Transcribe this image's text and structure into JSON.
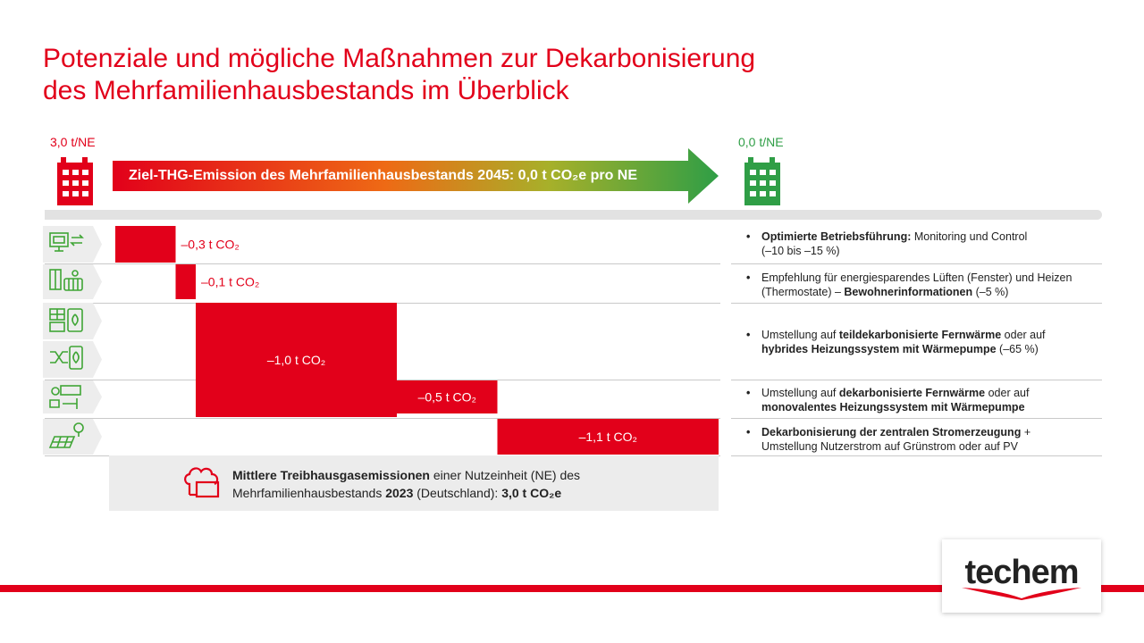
{
  "title": {
    "line1": "Potenziale und mögliche Maßnahmen zur Dekarbonisierung",
    "line2": "des Mehrfamilienhausbestands im Überblick"
  },
  "start_label": "3,0 t/NE",
  "end_label": "0,0 t/NE",
  "arrow_text": "Ziel-THG-Emission des Mehrfamilienhausbestands 2045: 0,0 t CO₂e pro NE",
  "colors": {
    "accent_red": "#e2001a",
    "green": "#2f9e46",
    "orange": "#f08a1c",
    "icon_green": "#3fa535"
  },
  "icons": [
    {
      "name": "monitoring-icon"
    },
    {
      "name": "thermostat-radiator-icon"
    },
    {
      "name": "solar-heating-icon"
    },
    {
      "name": "hybrid-switch-icon"
    },
    {
      "name": "district-heat-pump-icon"
    },
    {
      "name": "solar-power-icon"
    }
  ],
  "chart_data": {
    "type": "waterfall",
    "start_value": 3.0,
    "end_value": 0.0,
    "unit": "t CO₂",
    "steps": [
      {
        "value": -0.3,
        "label": "–0,3 t CO₂"
      },
      {
        "value": -0.1,
        "label": "–0,1 t CO₂"
      },
      {
        "value": -1.0,
        "label": "–1,0 t CO₂"
      },
      {
        "value": -0.5,
        "label": "–0,5 t CO₂"
      },
      {
        "value": -1.1,
        "label": "–1,1 t CO₂"
      }
    ]
  },
  "measures": [
    {
      "segments": [
        {
          "t": "Optimierte Betriebsführung:",
          "b": true
        },
        {
          "t": " Monitoring und Control",
          "b": false
        },
        {
          "br": true
        },
        {
          "t": "(–10 bis –15 %)",
          "b": false
        }
      ]
    },
    {
      "segments": [
        {
          "t": "Empfehlung für energiesparendes Lüften (Fenster) und Heizen",
          "b": false
        },
        {
          "br": true
        },
        {
          "t": "(Thermostate) – ",
          "b": false
        },
        {
          "t": "Bewohnerinformationen",
          "b": true
        },
        {
          "t": " (–5 %)",
          "b": false
        }
      ]
    },
    {
      "segments": [
        {
          "t": "Umstellung auf ",
          "b": false
        },
        {
          "t": "teildekarbonisierte Fernwärme",
          "b": true
        },
        {
          "t": " oder auf",
          "b": false
        },
        {
          "br": true
        },
        {
          "t": "hybrides Heizungssystem mit Wärmepumpe",
          "b": true
        },
        {
          "t": " (–65 %)",
          "b": false
        }
      ]
    },
    {
      "segments": [
        {
          "t": "Umstellung auf ",
          "b": false
        },
        {
          "t": "dekarbonisierte Fernwärme",
          "b": true
        },
        {
          "t": " oder auf",
          "b": false
        },
        {
          "br": true
        },
        {
          "t": "monovalentes Heizungssystem mit Wärmepumpe",
          "b": true
        }
      ]
    },
    {
      "segments": [
        {
          "t": "Dekarbonisierung der zentralen Stromerzeugung",
          "b": true
        },
        {
          "t": " +",
          "b": false
        },
        {
          "br": true
        },
        {
          "t": "Umstellung Nutzerstrom auf Grünstrom oder auf PV",
          "b": false
        }
      ]
    }
  ],
  "bullet": "•",
  "baseline": {
    "segments": [
      {
        "t": "Mittlere Treibhausgasemissionen",
        "b": true
      },
      {
        "t": " einer Nutzeinheit (NE) des",
        "b": false
      },
      {
        "br": true
      },
      {
        "t": "Mehrfamilienhausbestands ",
        "b": false
      },
      {
        "t": "2023",
        "b": true
      },
      {
        "t": " (Deutschland): ",
        "b": false
      },
      {
        "t": "3,0 t CO₂e",
        "b": true
      }
    ]
  },
  "logo_text": "techem"
}
